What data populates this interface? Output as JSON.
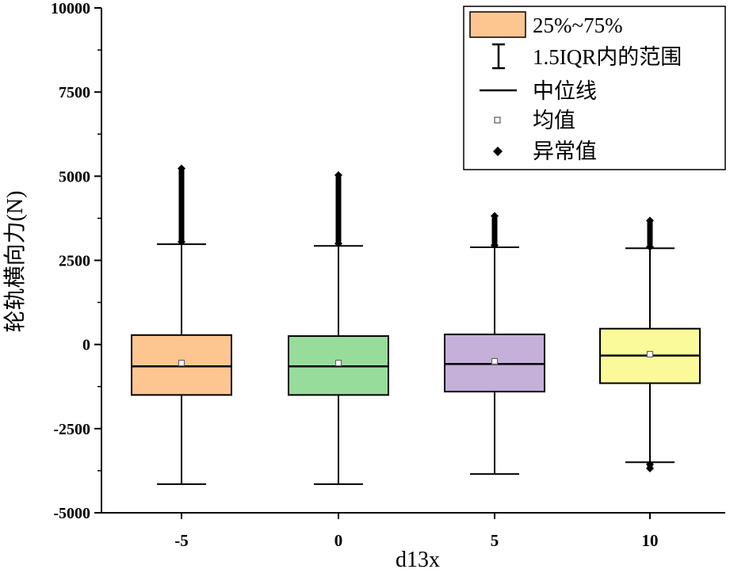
{
  "chart_data": {
    "type": "box",
    "xlabel": "d13x",
    "ylabel": "轮轨横向力(N)",
    "ylim": [
      -5000,
      10000
    ],
    "y_ticks": [
      -5000,
      -2500,
      0,
      2500,
      5000,
      7500,
      10000
    ],
    "y_tick_labels": [
      "-5000",
      "-2500",
      "0",
      "2500",
      "5000",
      "7500",
      "10000"
    ],
    "categories": [
      "-5",
      "0",
      "5",
      "10"
    ],
    "boxes": [
      {
        "category": "-5",
        "whisker_low": -4150,
        "q1": -1500,
        "median": -650,
        "mean": -550,
        "q3": 280,
        "whisker_high": 2980,
        "outliers_high": [
          3050,
          5230
        ],
        "outliers_low": [],
        "color": "#fdc590"
      },
      {
        "category": "0",
        "whisker_low": -4150,
        "q1": -1500,
        "median": -650,
        "mean": -550,
        "q3": 250,
        "whisker_high": 2930,
        "outliers_high": [
          3000,
          5030
        ],
        "outliers_low": [],
        "color": "#98dc9c"
      },
      {
        "category": "5",
        "whisker_low": -3850,
        "q1": -1400,
        "median": -580,
        "mean": -500,
        "q3": 300,
        "whisker_high": 2890,
        "outliers_high": [
          2950,
          3820
        ],
        "outliers_low": [],
        "color": "#c4b0d9"
      },
      {
        "category": "10",
        "whisker_low": -3500,
        "q1": -1150,
        "median": -330,
        "mean": -290,
        "q3": 470,
        "whisker_high": 2860,
        "outliers_high": [
          2900,
          3680
        ],
        "outliers_low": [
          -3560,
          -3680
        ],
        "color": "#fafa9a"
      }
    ],
    "legend": {
      "position": "top-right",
      "entries": [
        {
          "key": "box",
          "label": "25%~75%"
        },
        {
          "key": "whisker",
          "label": "1.5IQR内的范围"
        },
        {
          "key": "median",
          "label": "中位线"
        },
        {
          "key": "mean",
          "label": "均值"
        },
        {
          "key": "outlier",
          "label": "异常值"
        }
      ]
    }
  }
}
